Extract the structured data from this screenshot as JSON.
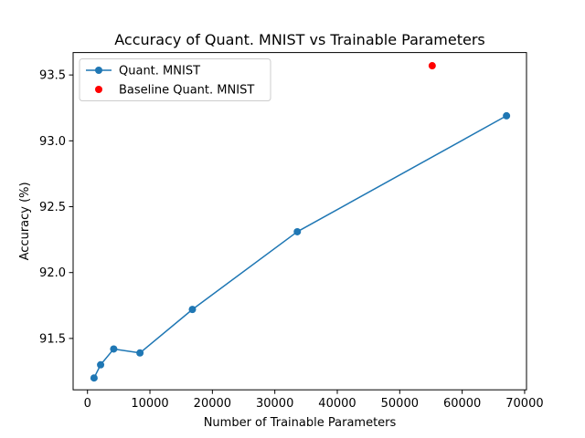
{
  "chart_data": {
    "type": "line",
    "title": "Accuracy of Quant. MNIST vs Trainable Parameters",
    "xlabel": "Number of Trainable Parameters",
    "ylabel": "Accuracy (%)",
    "xlim": [
      -2300,
      70300
    ],
    "ylim": [
      91.11,
      93.67
    ],
    "xticks": [
      0,
      10000,
      20000,
      30000,
      40000,
      50000,
      60000,
      70000
    ],
    "yticks": [
      91.5,
      92.0,
      92.5,
      93.0,
      93.5
    ],
    "xtick_labels": [
      "0",
      "10000",
      "20000",
      "30000",
      "40000",
      "50000",
      "60000",
      "70000"
    ],
    "ytick_labels": [
      "91.5",
      "92.0",
      "92.5",
      "93.0",
      "93.5"
    ],
    "grid": false,
    "legend_position": "top-left",
    "series": [
      {
        "name": "Quant. MNIST",
        "type": "line",
        "marker": "circle",
        "color": "#1f77b4",
        "x": [
          1050,
          2100,
          4200,
          8400,
          16800,
          33600,
          67100
        ],
        "y": [
          91.2,
          91.3,
          91.42,
          91.39,
          91.72,
          92.31,
          93.19
        ]
      },
      {
        "name": "Baseline Quant. MNIST",
        "type": "scatter",
        "marker": "circle",
        "color": "#ff0000",
        "x": [
          55200
        ],
        "y": [
          93.57
        ]
      }
    ]
  }
}
